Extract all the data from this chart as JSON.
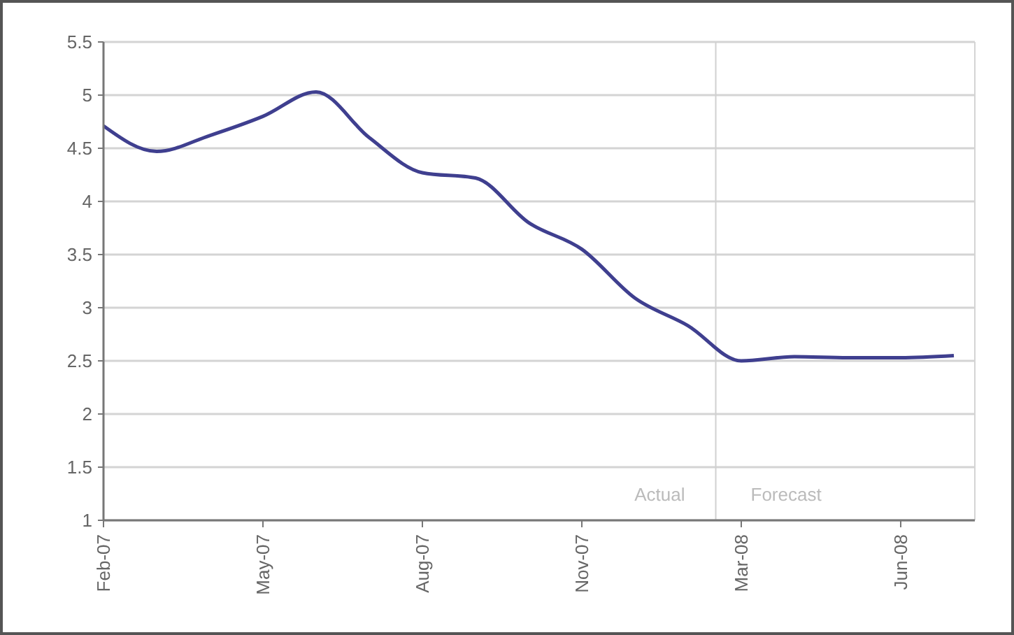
{
  "chart_data": {
    "type": "line",
    "categories": [
      "Feb-07",
      null,
      null,
      "May-07",
      null,
      null,
      "Aug-07",
      null,
      null,
      "Nov-07",
      null,
      null,
      "Mar-08",
      null,
      null,
      "Jun-08",
      null
    ],
    "series": [
      {
        "color": "#3f3f8f",
        "values": [
          4.71,
          4.47,
          4.62,
          4.8,
          5.03,
          4.6,
          4.27,
          4.22,
          3.8,
          3.55,
          3.09,
          2.83,
          2.5,
          2.54,
          2.53,
          2.53,
          2.55
        ]
      }
    ],
    "ylim": [
      1,
      5.5
    ],
    "yticks": [
      1,
      1.5,
      2,
      2.5,
      3,
      3.5,
      4,
      4.5,
      5,
      5.5
    ],
    "grid": "y",
    "line_style": "solid",
    "annotations": [
      "Actual",
      "Forecast"
    ]
  }
}
